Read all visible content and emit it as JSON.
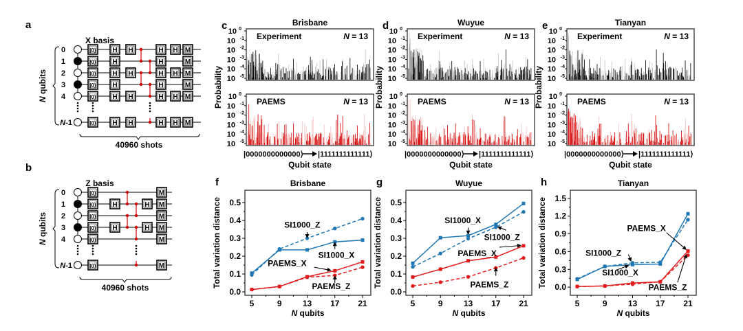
{
  "panels": {
    "a": {
      "letter": "a",
      "title": "X basis",
      "ylabel_italic": "N",
      "ylabel": " qubits",
      "shots": "40960 shots",
      "qubit_labels": [
        "0",
        "1",
        "2",
        "3",
        "4",
        "N-1"
      ],
      "initial_states": [
        "open",
        "filled",
        "open",
        "filled",
        "open",
        "open"
      ],
      "init_gate": "|0⟩",
      "h_gate": "H",
      "m_gate": "M"
    },
    "b": {
      "letter": "b",
      "title": "Z basis",
      "ylabel_italic": "N",
      "ylabel": " qubits",
      "shots": "40960 shots",
      "qubit_labels": [
        "0",
        "1",
        "2",
        "3",
        "4",
        "N-1"
      ],
      "initial_states": [
        "open",
        "filled",
        "open",
        "filled",
        "open",
        "open"
      ],
      "init_gate": "|0⟩",
      "h_gate": "H",
      "m_gate": "M"
    }
  },
  "colors": {
    "experiment": "#000000",
    "paems": "#d40000",
    "si1000": "#1f77b4",
    "paems_line": "#e31a1c",
    "frame": "#333333"
  },
  "chart_data": [
    {
      "id": "c",
      "type": "bar",
      "letter": "c",
      "title": "Brisbane",
      "ylabel": "Probability",
      "xlabel": "Qubit state",
      "x_start": "|0000000000000⟩",
      "x_end": "|1111111111111⟩",
      "yscale": "log",
      "ylim": [
        1e-05,
        1
      ],
      "yticks": [
        "10^0",
        "10^-1",
        "10^-2",
        "10^-3",
        "10^-4",
        "10^-5"
      ],
      "subplots": [
        {
          "label": "Experiment",
          "annotation": "N = 13",
          "color": "experiment"
        },
        {
          "label": "PAEMS",
          "annotation": "N = 13",
          "color": "paems"
        }
      ]
    },
    {
      "id": "d",
      "type": "bar",
      "letter": "d",
      "title": "Wuyue",
      "ylabel": "Probability",
      "xlabel": "Qubit state",
      "x_start": "|0000000000000⟩",
      "x_end": "|1111111111111⟩",
      "yscale": "log",
      "ylim": [
        1e-05,
        1
      ],
      "yticks": [
        "10^0",
        "10^-1",
        "10^-2",
        "10^-3",
        "10^-4",
        "10^-5"
      ],
      "subplots": [
        {
          "label": "Experiment",
          "annotation": "N = 13",
          "color": "experiment"
        },
        {
          "label": "PAEMS",
          "annotation": "N = 13",
          "color": "paems"
        }
      ]
    },
    {
      "id": "e",
      "type": "bar",
      "letter": "e",
      "title": "Tianyan",
      "ylabel": "Probability",
      "xlabel": "Qubit state",
      "x_start": "|0000000000000⟩",
      "x_end": "|1111111111111⟩",
      "yscale": "log",
      "ylim": [
        1e-05,
        1
      ],
      "yticks": [
        "10^0",
        "10^-1",
        "10^-2",
        "10^-3",
        "10^-4",
        "10^-5"
      ],
      "subplots": [
        {
          "label": "Experiment",
          "annotation": "N = 13",
          "color": "experiment"
        },
        {
          "label": "PAEMS",
          "annotation": "N = 13",
          "color": "paems"
        }
      ]
    },
    {
      "id": "f",
      "type": "line",
      "letter": "f",
      "title": "Brisbane",
      "xlabel": "N qubits",
      "ylabel": "Total variation distance",
      "x": [
        5,
        9,
        13,
        17,
        21
      ],
      "ylim": [
        0,
        0.55
      ],
      "yticks": [
        0.0,
        0.1,
        0.2,
        0.3,
        0.4,
        0.5
      ],
      "ytick_labels": [
        "0.0",
        "0.1",
        "0.2",
        "0.3",
        "0.4",
        "0.5"
      ],
      "series": [
        {
          "name": "SI1000_X",
          "style": "solid",
          "color": "si1000",
          "values": [
            0.105,
            0.235,
            0.235,
            0.28,
            0.29
          ]
        },
        {
          "name": "SI1000_Z",
          "style": "dashed",
          "color": "si1000",
          "values": [
            0.095,
            0.24,
            0.3,
            0.355,
            0.41
          ]
        },
        {
          "name": "PAEMS_X",
          "style": "solid",
          "color": "paems_line",
          "values": [
            0.013,
            0.03,
            0.085,
            0.118,
            0.168
          ]
        },
        {
          "name": "PAEMS_Z",
          "style": "dashed",
          "color": "paems_line",
          "values": [
            0.013,
            0.03,
            0.082,
            0.092,
            0.138
          ]
        }
      ],
      "annotations": [
        {
          "text": "SI1000_Z",
          "tx": 9.7,
          "ty": 0.36,
          "ax": 13,
          "ay": 0.3,
          "from": [
            13,
            0.335
          ]
        },
        {
          "text": "SI1000_X",
          "tx": 14.6,
          "ty": 0.19,
          "ax": 17,
          "ay": 0.28,
          "from": [
            17,
            0.24
          ]
        },
        {
          "text": "PAEMS_X",
          "tx": 7.3,
          "ty": 0.145,
          "ax": 16.5,
          "ay": 0.12,
          "from": [
            14,
            0.138
          ]
        },
        {
          "text": "PAEMS_Z",
          "tx": 13.7,
          "ty": 0.015,
          "ax": 17,
          "ay": 0.093,
          "from": [
            17,
            0.05
          ]
        }
      ]
    },
    {
      "id": "g",
      "type": "line",
      "letter": "g",
      "title": "Wuyue",
      "xlabel": "N qubits",
      "ylabel": "Total variation distance",
      "x": [
        5,
        9,
        13,
        17,
        21
      ],
      "ylim": [
        0,
        0.55
      ],
      "yticks": [
        0.0,
        0.1,
        0.2,
        0.3,
        0.4,
        0.5
      ],
      "ytick_labels": [
        "0.0",
        "0.1",
        "0.2",
        "0.3",
        "0.4",
        "0.5"
      ],
      "series": [
        {
          "name": "SI1000_X",
          "style": "solid",
          "color": "si1000",
          "values": [
            0.16,
            0.303,
            0.315,
            0.378,
            0.495
          ]
        },
        {
          "name": "SI1000_Z",
          "style": "dashed",
          "color": "si1000",
          "values": [
            0.14,
            0.215,
            0.298,
            0.362,
            0.448
          ]
        },
        {
          "name": "PAEMS_X",
          "style": "solid",
          "color": "paems_line",
          "values": [
            0.083,
            0.127,
            0.174,
            0.195,
            0.258
          ]
        },
        {
          "name": "PAEMS_Z",
          "style": "dashed",
          "color": "paems_line",
          "values": [
            0.033,
            0.054,
            0.084,
            0.134,
            0.19
          ]
        }
      ],
      "annotations": [
        {
          "text": "SI1000_X",
          "tx": 9.6,
          "ty": 0.385,
          "ax": 13,
          "ay": 0.32,
          "from": [
            13,
            0.36
          ]
        },
        {
          "text": "SI1000_Z",
          "tx": 15.3,
          "ty": 0.29,
          "ax": 17.2,
          "ay": 0.365,
          "from": [
            18.5,
            0.345
          ]
        },
        {
          "text": "PAEMS_X",
          "tx": 11.5,
          "ty": 0.2,
          "ax": 20.7,
          "ay": 0.26,
          "from": [
            17.5,
            0.25
          ]
        },
        {
          "text": "PAEMS_Z",
          "tx": 13.3,
          "ty": 0.025,
          "ax": 17,
          "ay": 0.138,
          "from": [
            17,
            0.09
          ]
        }
      ]
    },
    {
      "id": "h",
      "type": "line",
      "letter": "h",
      "title": "Tianyan",
      "xlabel": "N qubits",
      "ylabel": "Total variation distance",
      "x": [
        5,
        9,
        13,
        17,
        21
      ],
      "ylim": [
        -0.08,
        1.58
      ],
      "yticks": [
        0.0,
        0.3,
        0.6,
        0.9,
        1.2,
        1.5
      ],
      "ytick_labels": [
        "0.0",
        "0.3",
        "0.6",
        "0.9",
        "1.2",
        "1.5"
      ],
      "series": [
        {
          "name": "SI1000_X",
          "style": "solid",
          "color": "si1000",
          "values": [
            0.13,
            0.35,
            0.38,
            0.39,
            1.24
          ]
        },
        {
          "name": "SI1000_Z",
          "style": "dashed",
          "color": "si1000",
          "values": [
            0.14,
            0.35,
            0.41,
            0.42,
            1.14
          ]
        },
        {
          "name": "PAEMS_X",
          "style": "solid",
          "color": "paems_line",
          "values": [
            0.01,
            0.02,
            0.07,
            0.09,
            0.61
          ]
        },
        {
          "name": "PAEMS_Z",
          "style": "dashed",
          "color": "paems_line",
          "values": [
            0.01,
            0.02,
            0.05,
            0.09,
            0.54
          ]
        }
      ],
      "annotations": [
        {
          "text": "SI1000_Z",
          "tx": 6.2,
          "ty": 0.53,
          "ax": 12.8,
          "ay": 0.43,
          "from": [
            12.4,
            0.55
          ]
        },
        {
          "text": "SI1000_X",
          "tx": 8.6,
          "ty": 0.2,
          "ax": 12.5,
          "ay": 0.37,
          "from": [
            10.7,
            0.29
          ]
        },
        {
          "text": "PAEMS_X",
          "tx": 12.2,
          "ty": 0.95,
          "ax": 20.8,
          "ay": 0.63,
          "from": [
            17.9,
            0.92
          ]
        },
        {
          "text": "PAEMS_Z",
          "tx": 15.3,
          "ty": -0.05,
          "ax": 20.8,
          "ay": 0.56,
          "from": [
            19.5,
            0.08
          ]
        }
      ]
    }
  ]
}
